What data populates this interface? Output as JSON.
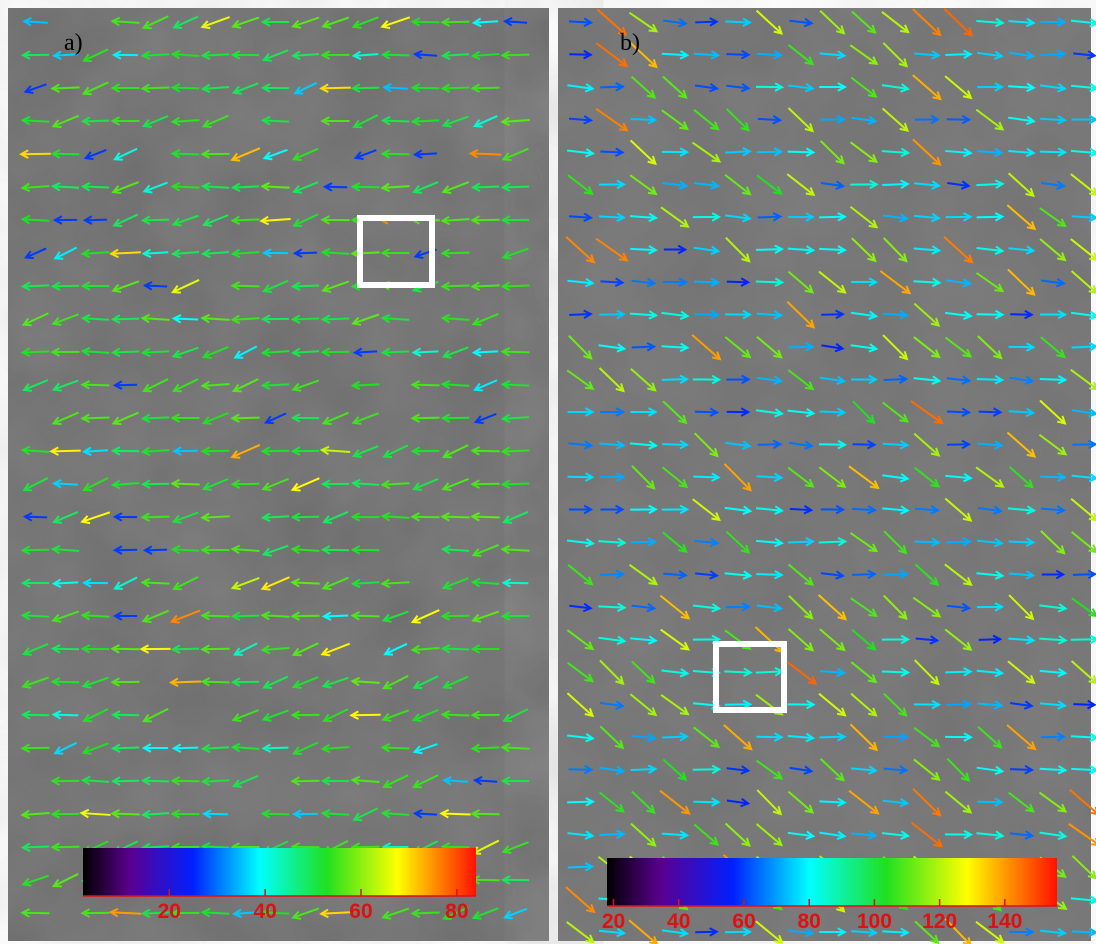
{
  "panels": [
    {
      "label": "a)",
      "colorbar": {
        "range": [
          2,
          84
        ],
        "ticks": [
          20,
          40,
          60,
          80
        ]
      }
    },
    {
      "label": "b)",
      "colorbar": {
        "range": [
          18,
          156
        ],
        "ticks": [
          20,
          40,
          60,
          80,
          100,
          120,
          140
        ]
      }
    }
  ]
}
